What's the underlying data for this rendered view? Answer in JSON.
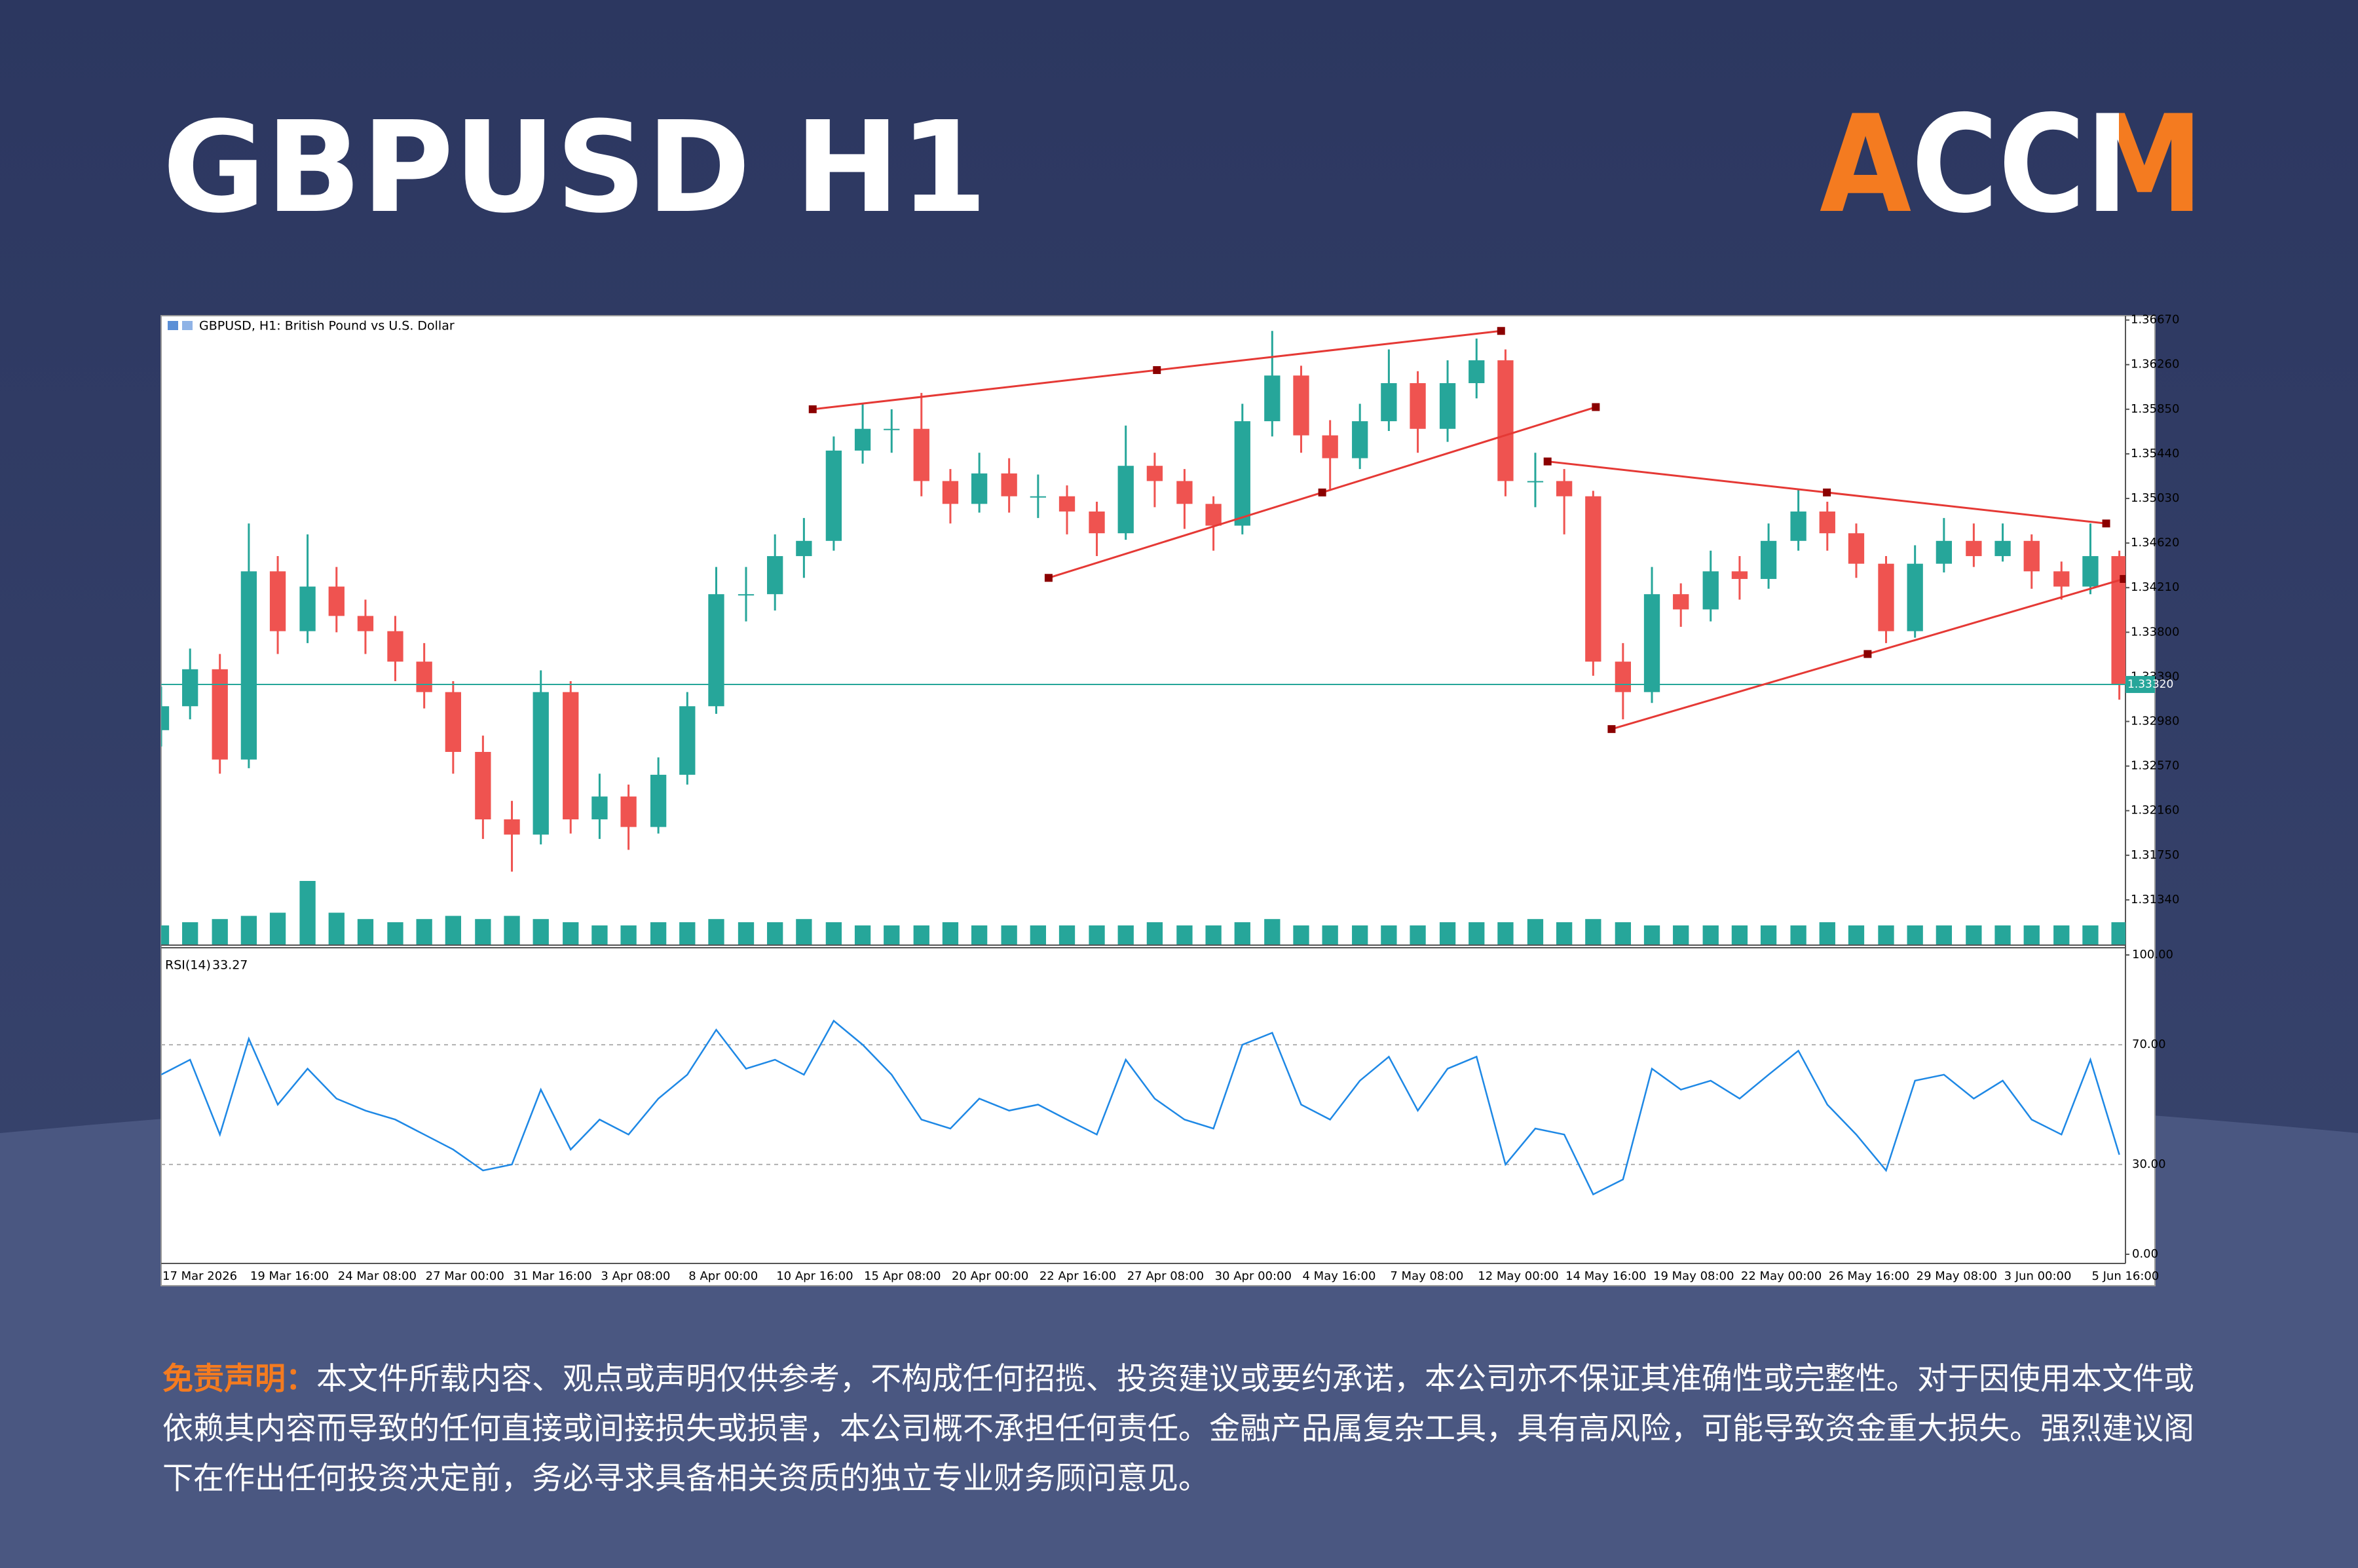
{
  "header": {
    "title": "GBPUSD H1",
    "logo": "ACCM"
  },
  "chart_data": {
    "type": "candlestick",
    "title": "GBPUSD, H1:  British Pound vs U.S. Dollar",
    "x_labels": [
      "17 Mar 2026",
      "19 Mar 16:00",
      "24 Mar 08:00",
      "27 Mar 00:00",
      "31 Mar 16:00",
      "3 Apr 08:00",
      "8 Apr 00:00",
      "10 Apr 16:00",
      "15 Apr 08:00",
      "20 Apr 00:00",
      "22 Apr 16:00",
      "27 Apr 08:00",
      "30 Apr 00:00",
      "4 May 16:00",
      "7 May 08:00",
      "12 May 00:00",
      "14 May 16:00",
      "19 May 08:00",
      "22 May 00:00",
      "26 May 16:00",
      "29 May 08:00",
      "3 Jun 00:00",
      "5 Jun 16:00"
    ],
    "xlim": [
      0,
      22.4
    ],
    "x": [
      0,
      0.33,
      0.67,
      1,
      1.33,
      1.67,
      2,
      2.33,
      2.67,
      3,
      3.33,
      3.67,
      4,
      4.33,
      4.67,
      5,
      5.33,
      5.67,
      6,
      6.33,
      6.67,
      7,
      7.33,
      7.67,
      8,
      8.33,
      8.67,
      9,
      9.33,
      9.67,
      10,
      10.33,
      10.67,
      11,
      11.33,
      11.67,
      12,
      12.33,
      12.67,
      13,
      13.33,
      13.67,
      14,
      14.33,
      14.67,
      15,
      15.33,
      15.67,
      16,
      16.33,
      16.67,
      17,
      17.33,
      17.67,
      18,
      18.33,
      18.67,
      19,
      19.33,
      19.67,
      20,
      20.33,
      20.67,
      21,
      21.33,
      21.67,
      22,
      22.33
    ],
    "open": [
      1.329,
      1.3312,
      1.3346,
      1.3263,
      1.3436,
      1.3381,
      1.3422,
      1.3395,
      1.3381,
      1.3353,
      1.3325,
      1.327,
      1.3208,
      1.3194,
      1.3325,
      1.3208,
      1.3229,
      1.3201,
      1.3249,
      1.3312,
      1.3415,
      1.3415,
      1.345,
      1.3464,
      1.3547,
      1.3567,
      1.3567,
      1.3519,
      1.3498,
      1.3526,
      1.3505,
      1.3505,
      1.3491,
      1.3471,
      1.3533,
      1.3519,
      1.3498,
      1.3478,
      1.3574,
      1.3616,
      1.3561,
      1.354,
      1.3574,
      1.3609,
      1.3567,
      1.3609,
      1.363,
      1.3519,
      1.3519,
      1.3505,
      1.3353,
      1.3325,
      1.3415,
      1.3401,
      1.3436,
      1.3429,
      1.3464,
      1.3491,
      1.3471,
      1.3443,
      1.3381,
      1.3443,
      1.3464,
      1.345,
      1.3464,
      1.3436,
      1.3422,
      1.345
    ],
    "high": [
      1.333,
      1.3365,
      1.336,
      1.348,
      1.345,
      1.347,
      1.344,
      1.341,
      1.3395,
      1.337,
      1.3335,
      1.3285,
      1.3225,
      1.3345,
      1.3335,
      1.325,
      1.324,
      1.3265,
      1.3325,
      1.344,
      1.344,
      1.347,
      1.3485,
      1.356,
      1.359,
      1.3585,
      1.36,
      1.353,
      1.3545,
      1.354,
      1.3525,
      1.3515,
      1.35,
      1.357,
      1.3545,
      1.353,
      1.3505,
      1.359,
      1.3657,
      1.3625,
      1.3575,
      1.359,
      1.364,
      1.362,
      1.363,
      1.365,
      1.364,
      1.3545,
      1.353,
      1.351,
      1.337,
      1.344,
      1.3425,
      1.3455,
      1.345,
      1.348,
      1.3512,
      1.35,
      1.348,
      1.345,
      1.346,
      1.3485,
      1.348,
      1.348,
      1.347,
      1.3445,
      1.348,
      1.3455
    ],
    "low": [
      1.3275,
      1.33,
      1.325,
      1.3255,
      1.336,
      1.337,
      1.338,
      1.336,
      1.3335,
      1.331,
      1.325,
      1.319,
      1.316,
      1.3185,
      1.3195,
      1.319,
      1.318,
      1.3195,
      1.324,
      1.3305,
      1.339,
      1.34,
      1.343,
      1.3455,
      1.3535,
      1.3545,
      1.3505,
      1.348,
      1.349,
      1.349,
      1.3485,
      1.347,
      1.345,
      1.3465,
      1.3495,
      1.3475,
      1.3455,
      1.347,
      1.356,
      1.3545,
      1.351,
      1.353,
      1.3565,
      1.3545,
      1.3555,
      1.3595,
      1.3505,
      1.3495,
      1.347,
      1.334,
      1.33,
      1.3315,
      1.3385,
      1.339,
      1.341,
      1.342,
      1.3455,
      1.3455,
      1.343,
      1.337,
      1.3375,
      1.3435,
      1.344,
      1.3445,
      1.342,
      1.341,
      1.3415,
      1.3318
    ],
    "close": [
      1.3312,
      1.3346,
      1.3263,
      1.3436,
      1.3381,
      1.3422,
      1.3395,
      1.3381,
      1.3353,
      1.3325,
      1.327,
      1.3208,
      1.3194,
      1.3325,
      1.3208,
      1.3229,
      1.3201,
      1.3249,
      1.3312,
      1.3415,
      1.3415,
      1.345,
      1.3464,
      1.3547,
      1.3567,
      1.3567,
      1.3519,
      1.3498,
      1.3526,
      1.3505,
      1.3505,
      1.3491,
      1.3471,
      1.3533,
      1.3519,
      1.3498,
      1.3478,
      1.3574,
      1.3616,
      1.3561,
      1.354,
      1.3574,
      1.3609,
      1.3567,
      1.3609,
      1.363,
      1.3519,
      1.3519,
      1.3505,
      1.3353,
      1.3325,
      1.3415,
      1.3401,
      1.3436,
      1.3429,
      1.3464,
      1.3491,
      1.3471,
      1.3443,
      1.3381,
      1.3443,
      1.3464,
      1.345,
      1.3464,
      1.3436,
      1.3422,
      1.345,
      1.3332
    ],
    "up_color": "#26a69a",
    "down_color": "#ef5350",
    "volume": [
      30,
      35,
      40,
      45,
      50,
      100,
      50,
      40,
      35,
      40,
      45,
      40,
      45,
      40,
      35,
      30,
      30,
      35,
      35,
      40,
      35,
      35,
      40,
      35,
      30,
      30,
      30,
      35,
      30,
      30,
      30,
      30,
      30,
      30,
      35,
      30,
      30,
      35,
      40,
      30,
      30,
      30,
      30,
      30,
      35,
      35,
      35,
      40,
      35,
      40,
      35,
      30,
      30,
      30,
      30,
      30,
      30,
      35,
      30,
      30,
      30,
      30,
      30,
      30,
      30,
      30,
      30,
      35
    ],
    "volume_color": "#26a69a",
    "ylim": [
      1.3093,
      1.3671
    ],
    "yticks": [
      {
        "value": 1.3667,
        "label": "1.36670"
      },
      {
        "value": 1.3626,
        "label": "1.36260"
      },
      {
        "value": 1.3585,
        "label": "1.35850"
      },
      {
        "value": 1.3544,
        "label": "1.35440"
      },
      {
        "value": 1.3503,
        "label": "1.35030"
      },
      {
        "value": 1.3462,
        "label": "1.34620"
      },
      {
        "value": 1.3421,
        "label": "1.34210"
      },
      {
        "value": 1.338,
        "label": "1.33800"
      },
      {
        "value": 1.3339,
        "label": "1.33390"
      },
      {
        "value": 1.3298,
        "label": "1.32980"
      },
      {
        "value": 1.3257,
        "label": "1.32570"
      },
      {
        "value": 1.3216,
        "label": "1.32160"
      },
      {
        "value": 1.3175,
        "label": "1.31750"
      },
      {
        "value": 1.3134,
        "label": "1.31340"
      }
    ],
    "current_price": {
      "value": 1.3332,
      "label": "1.33320"
    },
    "current_price_color": "#26a69a",
    "trendline_color": "#e53935",
    "trendlines": [
      {
        "x": [
          7.43,
          15.28
        ],
        "y": [
          1.3585,
          1.3657
        ]
      },
      {
        "x": [
          10.12,
          16.36
        ],
        "y": [
          1.343,
          1.3587
        ]
      },
      {
        "x": [
          15.81,
          22.18
        ],
        "y": [
          1.3537,
          1.348
        ]
      },
      {
        "x": [
          16.54,
          22.38
        ],
        "y": [
          1.3291,
          1.3429
        ]
      }
    ],
    "rsi": {
      "name": "RSI(14)",
      "color": "#1e88e5",
      "ylim": [
        0,
        100
      ],
      "yticks": [
        {
          "value": 100,
          "label": "100.00"
        },
        {
          "value": 0,
          "label": "0.00"
        }
      ],
      "levels": [
        {
          "value": 70,
          "label": "70.00"
        },
        {
          "value": 30,
          "label": "30.00"
        }
      ],
      "values": [
        60,
        65,
        40,
        72,
        50,
        62,
        52,
        48,
        45,
        40,
        35,
        28,
        30,
        55,
        35,
        45,
        40,
        52,
        60,
        75,
        62,
        65,
        60,
        78,
        70,
        60,
        45,
        42,
        52,
        48,
        50,
        45,
        40,
        65,
        52,
        45,
        42,
        70,
        74,
        50,
        45,
        58,
        66,
        48,
        62,
        66,
        30,
        42,
        40,
        20,
        25,
        62,
        55,
        58,
        52,
        60,
        68,
        50,
        40,
        28,
        58,
        60,
        52,
        58,
        45,
        40,
        65,
        33.27
      ]
    }
  },
  "disclaimer": {
    "label": "免责声明：",
    "text": "本文件所载内容、观点或声明仅供参考，不构成任何招揽、投资建议或要约承诺，本公司亦不保证其准确性或完整性。对于因使用本文件或依赖其内容而导致的任何直接或间接损失或损害，本公司概不承担任何责任。金融产品属复杂工具，具有高风险，可能导致资金重大损失。强烈建议阁下在作出任何投资决定前，务必寻求具备相关资质的独立专业财务顾问意见。"
  }
}
